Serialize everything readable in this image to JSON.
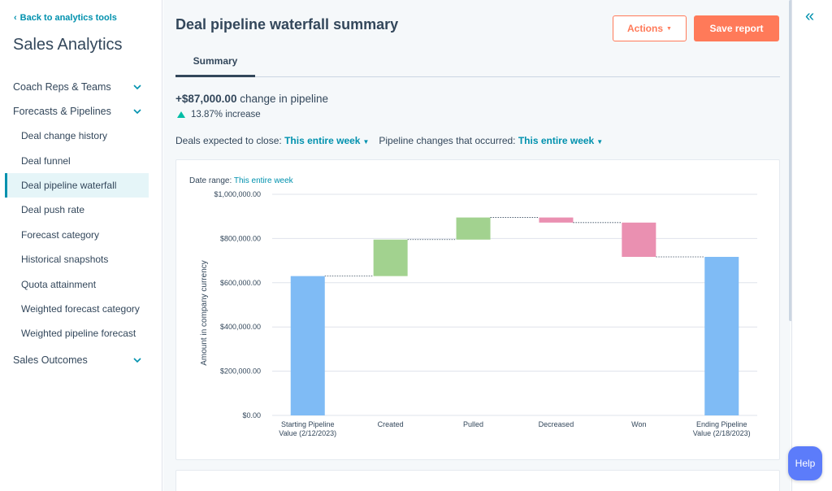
{
  "sidebar": {
    "back_label": "Back to analytics tools",
    "title": "Sales Analytics",
    "groups": [
      {
        "label": "Coach Reps & Teams"
      },
      {
        "label": "Forecasts & Pipelines"
      },
      {
        "label": "Sales Outcomes"
      }
    ],
    "items": [
      {
        "label": "Deal change history"
      },
      {
        "label": "Deal funnel"
      },
      {
        "label": "Deal pipeline waterfall",
        "active": true
      },
      {
        "label": "Deal push rate"
      },
      {
        "label": "Forecast category"
      },
      {
        "label": "Historical snapshots"
      },
      {
        "label": "Quota attainment"
      },
      {
        "label": "Weighted forecast category"
      },
      {
        "label": "Weighted pipeline forecast"
      }
    ]
  },
  "header": {
    "title": "Deal pipeline waterfall summary",
    "actions_label": "Actions",
    "save_label": "Save report"
  },
  "tabs": [
    {
      "label": "Summary"
    }
  ],
  "summary": {
    "change_value": "+$87,000.00",
    "change_text": "change in pipeline",
    "increase_text": "13.87% increase"
  },
  "filters": {
    "close_label": "Deals expected to close:",
    "close_value": "This entire week",
    "changes_label": "Pipeline changes that occurred:",
    "changes_value": "This entire week"
  },
  "card": {
    "date_range_label": "Date range:",
    "date_range_value": "This entire week"
  },
  "chart_data": {
    "type": "waterfall",
    "ylabel": "Amount in company currency",
    "ylim": [
      0,
      1000000
    ],
    "yticks": [
      {
        "value": 0,
        "label": "$0.00"
      },
      {
        "value": 200000,
        "label": "$200,000.00"
      },
      {
        "value": 400000,
        "label": "$400,000.00"
      },
      {
        "value": 600000,
        "label": "$600,000.00"
      },
      {
        "value": 800000,
        "label": "$800,000.00"
      },
      {
        "value": 1000000,
        "label": "$1,000,000.00"
      }
    ],
    "grid": true,
    "bars": [
      {
        "label_lines": [
          "Starting Pipeline",
          "Value (2/12/2023)"
        ],
        "start": 0,
        "end": 630000,
        "kind": "total"
      },
      {
        "label_lines": [
          "Created"
        ],
        "start": 630000,
        "end": 795000,
        "kind": "increase"
      },
      {
        "label_lines": [
          "Pulled"
        ],
        "start": 795000,
        "end": 895000,
        "kind": "increase"
      },
      {
        "label_lines": [
          "Decreased"
        ],
        "start": 895000,
        "end": 872000,
        "kind": "decrease"
      },
      {
        "label_lines": [
          "Won"
        ],
        "start": 872000,
        "end": 717000,
        "kind": "decrease"
      },
      {
        "label_lines": [
          "Ending Pipeline",
          "Value (2/18/2023)"
        ],
        "start": 0,
        "end": 717000,
        "kind": "total"
      }
    ],
    "colors": {
      "total": "#7fbbf5",
      "increase": "#a2d28f",
      "decrease": "#ea90b1"
    }
  },
  "help_label": "Help",
  "icons": {
    "back": "chevron-left-icon",
    "collapse": "double-chevron-left-icon"
  }
}
